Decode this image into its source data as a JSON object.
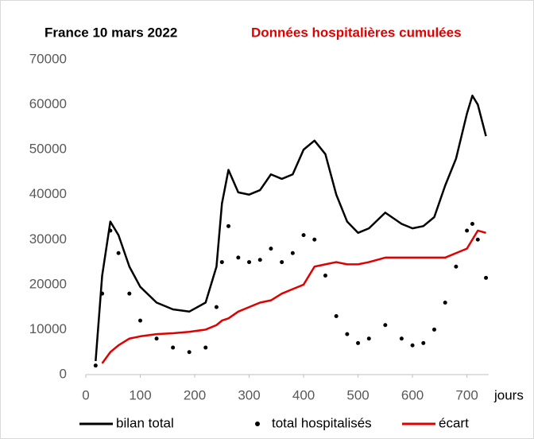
{
  "chart_data": {
    "type": "line",
    "title": "France 10 mars 2022",
    "subtitle": "Données hospitalières cumulées",
    "x_label": "jours",
    "x": [
      18,
      30,
      45,
      60,
      80,
      100,
      130,
      160,
      190,
      220,
      240,
      250,
      262,
      280,
      300,
      320,
      340,
      360,
      380,
      400,
      420,
      440,
      460,
      480,
      500,
      520,
      550,
      580,
      600,
      620,
      640,
      660,
      680,
      700,
      710,
      720,
      735
    ],
    "series": [
      {
        "name": "bilan total",
        "color": "#000000",
        "style": "line",
        "values": [
          3000,
          22000,
          34000,
          31000,
          24000,
          19500,
          16000,
          14500,
          14000,
          16000,
          24000,
          38000,
          45500,
          40500,
          40000,
          41000,
          44500,
          43500,
          44500,
          50000,
          52000,
          49000,
          40000,
          34000,
          31500,
          32500,
          36000,
          33500,
          32500,
          33000,
          35000,
          42000,
          48000,
          58000,
          62000,
          60000,
          53000
        ]
      },
      {
        "name": "total hospitalisés",
        "color": "#000000",
        "style": "dots",
        "values": [
          2000,
          18000,
          32000,
          27000,
          18000,
          12000,
          8000,
          6000,
          5000,
          6000,
          15000,
          25000,
          33000,
          26000,
          25000,
          25500,
          28000,
          25000,
          27000,
          31000,
          30000,
          22000,
          13000,
          9000,
          7000,
          8000,
          11000,
          8000,
          6500,
          7000,
          10000,
          16000,
          24000,
          32000,
          33500,
          30000,
          21500
        ]
      },
      {
        "name": "écart",
        "color": "#e00000",
        "style": "line",
        "values": [
          null,
          2500,
          5000,
          6500,
          8000,
          8500,
          9000,
          9200,
          9500,
          10000,
          11000,
          12000,
          12500,
          14000,
          15000,
          16000,
          16500,
          18000,
          19000,
          20000,
          24000,
          24500,
          25000,
          24500,
          24500,
          25000,
          26000,
          26000,
          26000,
          26000,
          26000,
          26000,
          27000,
          28000,
          30000,
          32000,
          31500
        ]
      }
    ],
    "xlim": [
      0,
      740
    ],
    "xticks": [
      0,
      100,
      200,
      300,
      400,
      500,
      600,
      700
    ],
    "ylim": [
      0,
      70000
    ],
    "yticks": [
      0,
      10000,
      20000,
      30000,
      40000,
      50000,
      60000,
      70000
    ],
    "grid": false
  }
}
